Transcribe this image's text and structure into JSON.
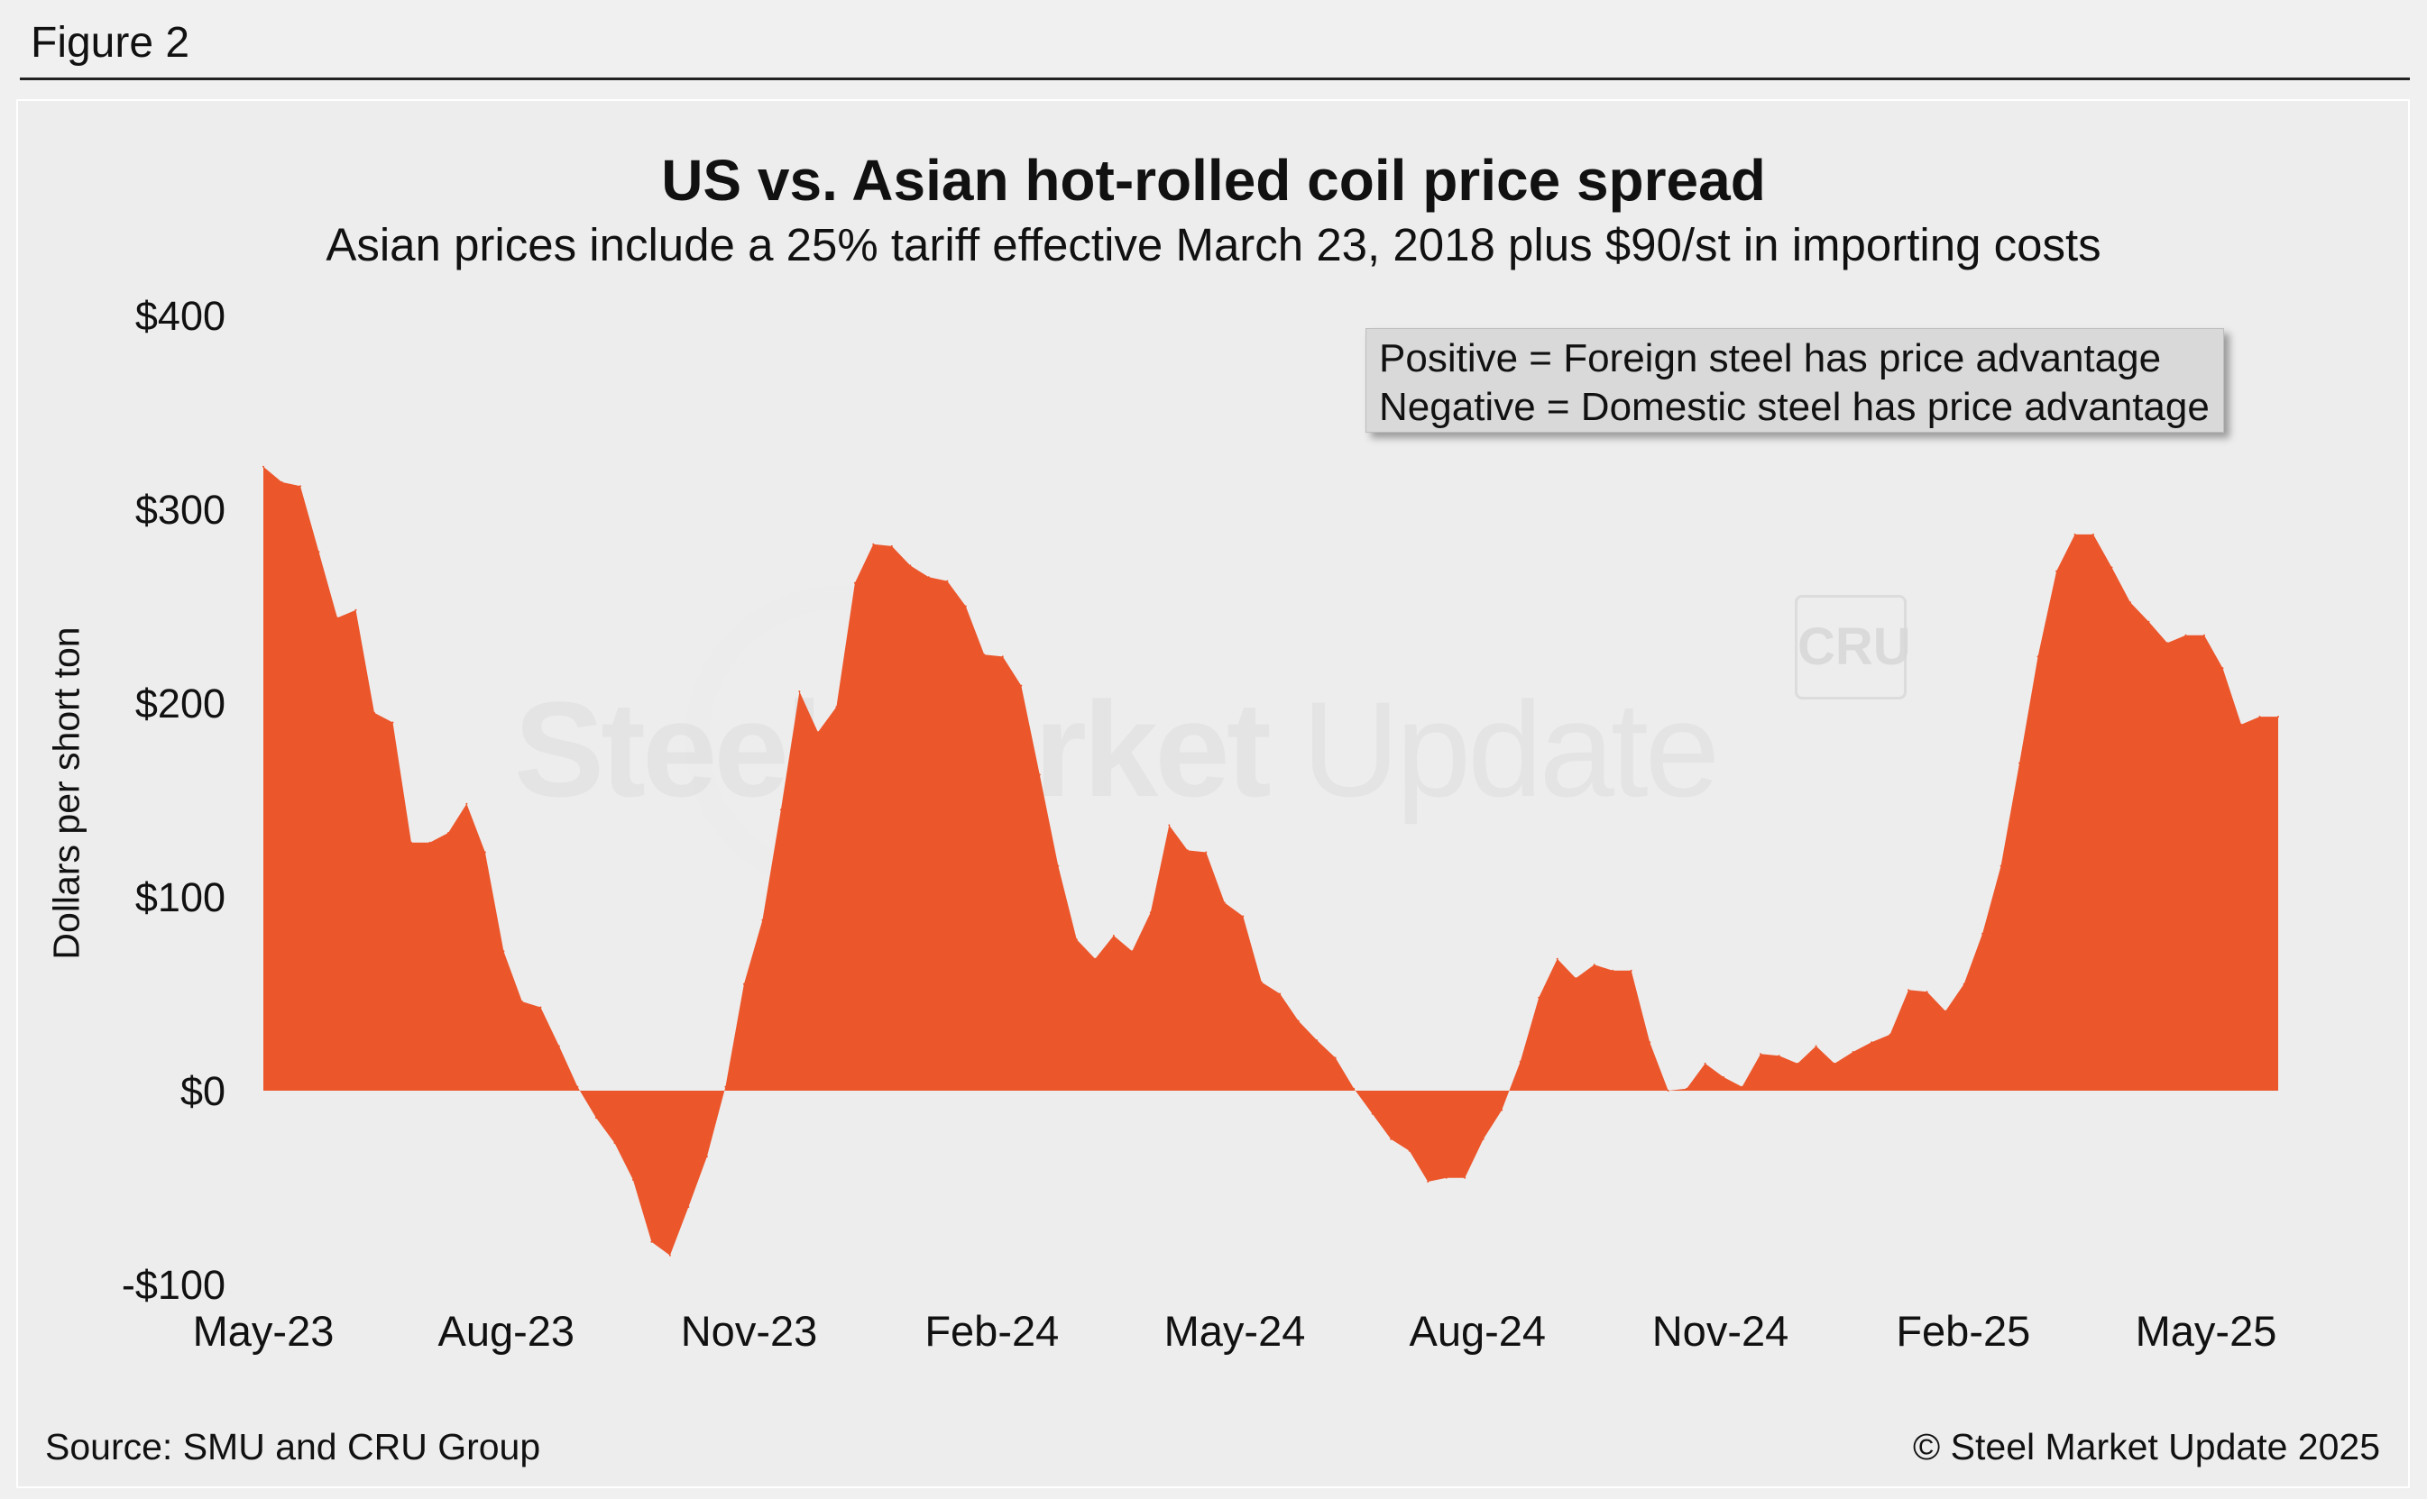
{
  "figure_label": "Figure 2",
  "source": "Source: SMU and CRU Group",
  "copyright": "© Steel Market Update 2025",
  "watermark": {
    "text_bold": "Steel Market",
    "text_light": " Update",
    "logo": "CRU"
  },
  "legend": {
    "line1": "Positive = Foreign steel has price advantage",
    "line2": "Negative = Domestic steel has price advantage"
  },
  "colors": {
    "area": "#ec562b",
    "background": "#ededed",
    "legend_bg": "#d9d9d9"
  },
  "chart_data": {
    "type": "area",
    "title": "US vs. Asian hot-rolled coil price spread",
    "subtitle": "Asian prices include a 25% tariff effective March 23, 2018 plus $90/st in importing costs",
    "ylabel": "Dollars per short ton",
    "xlabel": "",
    "ylim": [
      -100,
      400
    ],
    "y_ticks": [
      {
        "value": 400,
        "label": "$400"
      },
      {
        "value": 300,
        "label": "$300"
      },
      {
        "value": 200,
        "label": "$200"
      },
      {
        "value": 100,
        "label": "$100"
      },
      {
        "value": 0,
        "label": "$0"
      },
      {
        "value": -100,
        "label": "-$100"
      }
    ],
    "x_ticks": [
      "May-23",
      "Aug-23",
      "Nov-23",
      "Feb-24",
      "May-24",
      "Aug-24",
      "Nov-24",
      "Feb-25",
      "May-25"
    ],
    "grid": false,
    "legend_position": "top-right",
    "series": [
      {
        "values": [
          322,
          314,
          312,
          278,
          244,
          248,
          195,
          190,
          128,
          128,
          133,
          148,
          123,
          72,
          46,
          43,
          23,
          2,
          -14,
          -27,
          -46,
          -78,
          -85,
          -60,
          -34,
          2,
          55,
          88,
          145,
          206,
          185,
          198,
          262,
          282,
          281,
          271,
          265,
          263,
          250,
          225,
          224,
          209,
          163,
          116,
          78,
          68,
          80,
          72,
          92,
          137,
          124,
          123,
          97,
          90,
          56,
          50,
          36,
          26,
          17,
          1,
          -12,
          -25,
          -31,
          -47,
          -45,
          -45,
          -25,
          -10,
          15,
          48,
          68,
          58,
          65,
          62,
          62,
          25,
          0,
          1,
          14,
          7,
          2,
          19,
          18,
          14,
          23,
          14,
          20,
          25,
          29,
          52,
          51,
          41,
          55,
          81,
          116,
          169,
          224,
          268,
          287,
          287,
          270,
          252,
          242,
          231,
          235,
          235,
          218,
          189,
          193,
          193
        ]
      }
    ]
  }
}
